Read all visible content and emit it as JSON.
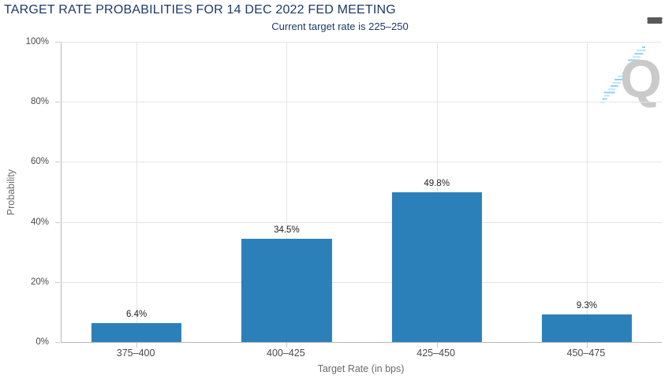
{
  "header": {
    "menu_icon": "hamburger-icon"
  },
  "watermark": {
    "logo_text": "Q"
  },
  "colors": {
    "title_text": "#1c3a66",
    "bar_fill": "#2c80b9",
    "gridline": "#e4e4e4",
    "axis_line": "#b8b8b8",
    "tick_mark": "#c9c9c9",
    "tick_label": "#4a4a4a",
    "axis_title": "#6a6a6a",
    "data_label": "#1f1f1f",
    "menu_icon": "#595959",
    "watermark_q": "#cacaca",
    "watermark_dash_light": "#b5e2f8",
    "watermark_dash_dark": "#7fcdf2"
  },
  "chart_data": {
    "type": "bar",
    "title": "TARGET RATE PROBABILITIES FOR 14 DEC 2022 FED MEETING",
    "subtitle": "Current target rate is 225–250",
    "categories": [
      "375–400",
      "400–425",
      "425–450",
      "450–475"
    ],
    "values": [
      6.4,
      34.5,
      49.8,
      9.3
    ],
    "value_labels": [
      "6.4%",
      "34.5%",
      "49.8%",
      "9.3%"
    ],
    "xlabel": "Target Rate (in bps)",
    "ylabel": "Probability",
    "ylim": [
      0,
      100
    ],
    "yticks": [
      "0%",
      "20%",
      "40%",
      "60%",
      "80%",
      "100%"
    ],
    "grid": true,
    "legend": "none",
    "bar_width_fraction": 0.6
  }
}
